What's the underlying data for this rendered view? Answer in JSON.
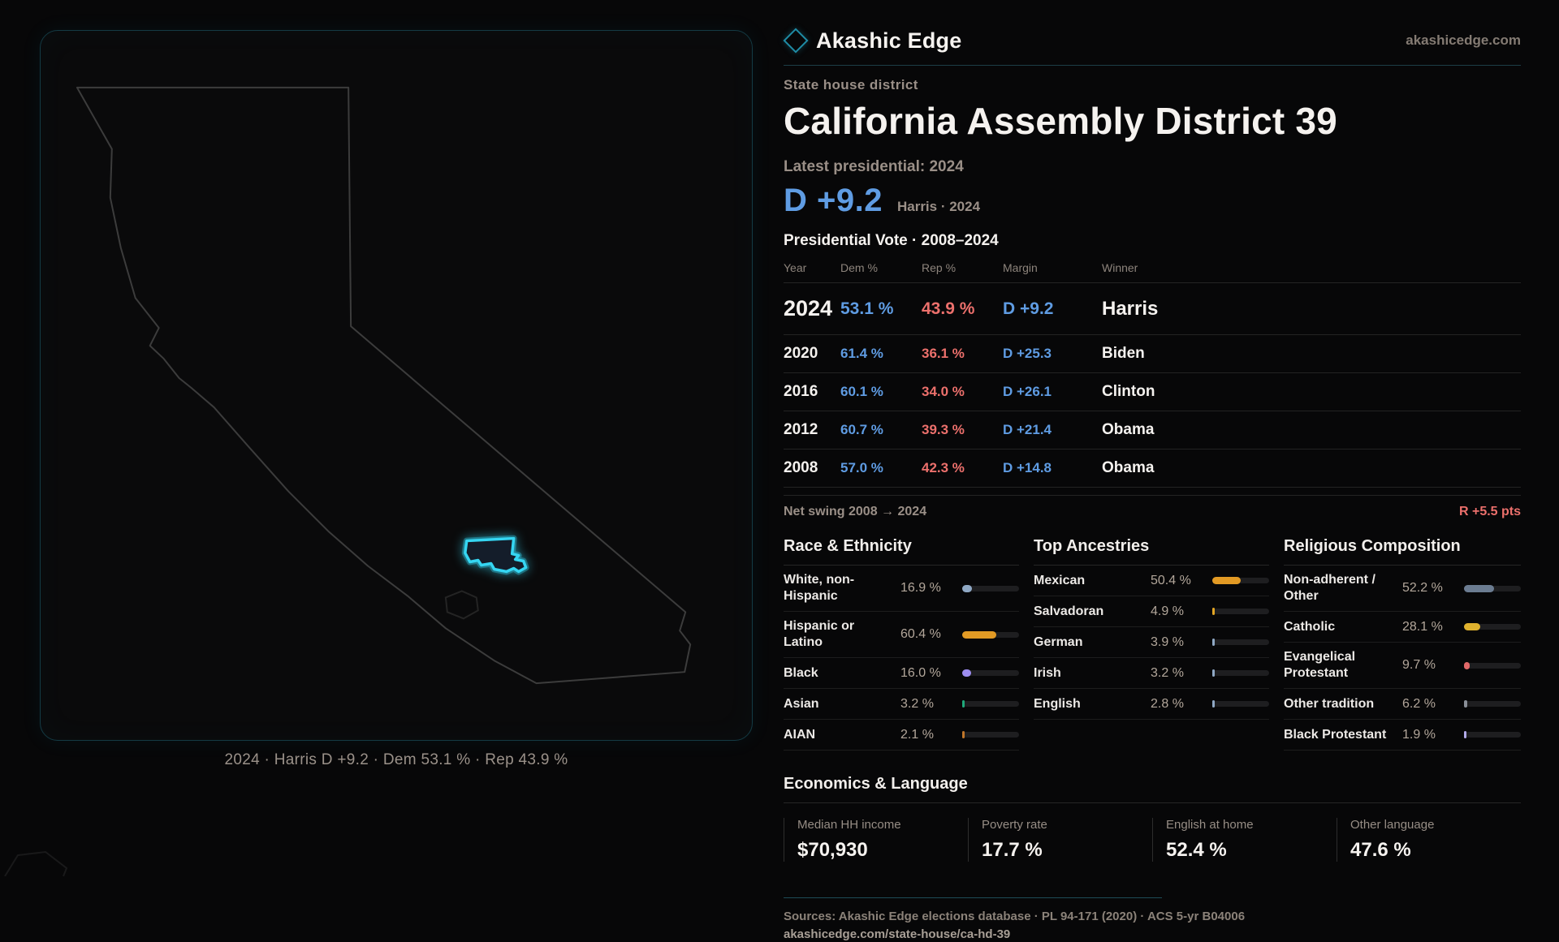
{
  "colors": {
    "dem": "#5f9ce3",
    "rep": "#ec706c",
    "accent": "#35d6f2",
    "muted": "#9a8f87"
  },
  "brand": {
    "name": "Akashic Edge",
    "domain": "akashicedge.com"
  },
  "header": {
    "kicker": "State house district",
    "title": "California Assembly District 39",
    "latest_label": "Latest presidential: 2024",
    "margin_value": "D +9.2",
    "margin_context": "Harris · 2024"
  },
  "map": {
    "caption": "2024 · Harris D +9.2 · Dem 53.1 % · Rep 43.9 %"
  },
  "table": {
    "title": "Presidential Vote · 2008–2024",
    "columns": [
      "Year",
      "Dem %",
      "Rep %",
      "Margin",
      "Winner"
    ],
    "rows": [
      {
        "year": "2024",
        "dem": "53.1 %",
        "rep": "43.9 %",
        "margin": "D +9.2",
        "winner": "Harris"
      },
      {
        "year": "2020",
        "dem": "61.4 %",
        "rep": "36.1 %",
        "margin": "D +25.3",
        "winner": "Biden"
      },
      {
        "year": "2016",
        "dem": "60.1 %",
        "rep": "34.0 %",
        "margin": "D +26.1",
        "winner": "Clinton"
      },
      {
        "year": "2012",
        "dem": "60.7 %",
        "rep": "39.3 %",
        "margin": "D +21.4",
        "winner": "Obama"
      },
      {
        "year": "2008",
        "dem": "57.0 %",
        "rep": "42.3 %",
        "margin": "D +14.8",
        "winner": "Obama"
      }
    ],
    "swing_label": "Net swing 2008 → 2024",
    "swing_value": "R +5.5 pts"
  },
  "demographics": {
    "sections": [
      {
        "id": "race",
        "title": "Race & Ethnicity",
        "rows": [
          {
            "label": "White, non-Hispanic",
            "value": "16.9 %",
            "pct": 16.9,
            "color": "#8fa8c4"
          },
          {
            "label": "Hispanic or Latino",
            "value": "60.4 %",
            "pct": 60.4,
            "color": "#e29a24"
          },
          {
            "label": "Black",
            "value": "16.0 %",
            "pct": 16.0,
            "color": "#9d8df0"
          },
          {
            "label": "Asian",
            "value": "3.2 %",
            "pct": 3.2,
            "color": "#1fa97a"
          },
          {
            "label": "AIAN",
            "value": "2.1 %",
            "pct": 2.1,
            "color": "#c0762a"
          }
        ]
      },
      {
        "id": "ancestry",
        "title": "Top Ancestries",
        "rows": [
          {
            "label": "Mexican",
            "value": "50.4 %",
            "pct": 50.4,
            "color": "#e29a24"
          },
          {
            "label": "Salvadoran",
            "value": "4.9 %",
            "pct": 4.9,
            "color": "#e2a524"
          },
          {
            "label": "German",
            "value": "3.9 %",
            "pct": 3.9,
            "color": "#8fa8c4"
          },
          {
            "label": "Irish",
            "value": "3.2 %",
            "pct": 3.2,
            "color": "#8fa8c4"
          },
          {
            "label": "English",
            "value": "2.8 %",
            "pct": 2.8,
            "color": "#8fa8c4"
          }
        ]
      },
      {
        "id": "religion",
        "title": "Religious Composition",
        "rows": [
          {
            "label": "Non-adherent / Other",
            "value": "52.2 %",
            "pct": 52.2,
            "color": "#6b7c91"
          },
          {
            "label": "Catholic",
            "value": "28.1 %",
            "pct": 28.1,
            "color": "#e0b22e"
          },
          {
            "label": "Evangelical Protestant",
            "value": "9.7 %",
            "pct": 9.7,
            "color": "#e06868"
          },
          {
            "label": "Other tradition",
            "value": "6.2 %",
            "pct": 6.2,
            "color": "#8a8f98"
          },
          {
            "label": "Black Protestant",
            "value": "1.9 %",
            "pct": 1.9,
            "color": "#b3abe9"
          }
        ]
      }
    ]
  },
  "economics": {
    "title": "Economics & Language",
    "stats": [
      {
        "id": "income",
        "label": "Median HH income",
        "value": "$70,930"
      },
      {
        "id": "poverty",
        "label": "Poverty rate",
        "value": "17.7 %"
      },
      {
        "id": "english",
        "label": "English at home",
        "value": "52.4 %"
      },
      {
        "id": "other",
        "label": "Other language",
        "value": "47.6 %"
      }
    ]
  },
  "footer": {
    "sources": "Sources: Akashic Edge elections database · PL 94-171 (2020) · ACS 5-yr B04006",
    "permalink": "akashicedge.com/state-house/ca-hd-39"
  }
}
